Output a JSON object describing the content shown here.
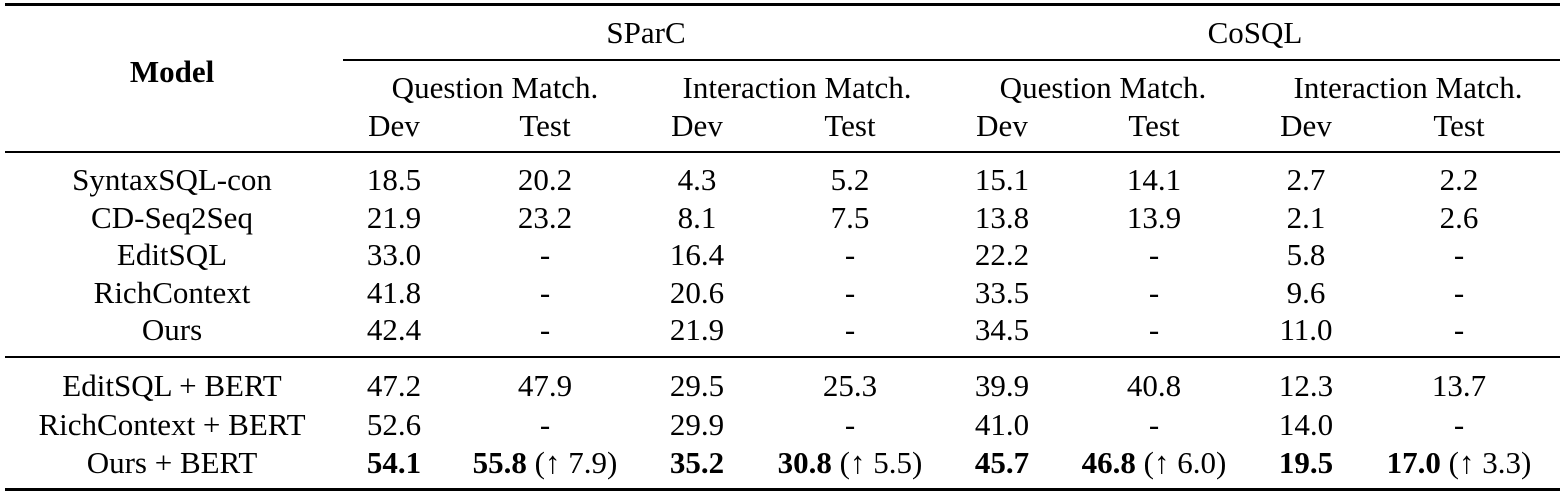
{
  "header": {
    "model_label": "Model",
    "datasets": [
      {
        "name": "SParC"
      },
      {
        "name": "CoSQL"
      }
    ],
    "metrics": [
      "Question Match.",
      "Interaction Match.",
      "Question Match.",
      "Interaction Match."
    ],
    "splits": [
      "Dev",
      "Test",
      "Dev",
      "Test",
      "Dev",
      "Test",
      "Dev",
      "Test"
    ]
  },
  "group1": [
    {
      "model": "SyntaxSQL-con",
      "values": [
        "18.5",
        "20.2",
        "4.3",
        "5.2",
        "15.1",
        "14.1",
        "2.7",
        "2.2"
      ]
    },
    {
      "model": "CD-Seq2Seq",
      "values": [
        "21.9",
        "23.2",
        "8.1",
        "7.5",
        "13.8",
        "13.9",
        "2.1",
        "2.6"
      ]
    },
    {
      "model": "EditSQL",
      "values": [
        "33.0",
        "-",
        "16.4",
        "-",
        "22.2",
        "-",
        "5.8",
        "-"
      ]
    },
    {
      "model": "RichContext",
      "values": [
        "41.8",
        "-",
        "20.6",
        "-",
        "33.5",
        "-",
        "9.6",
        "-"
      ]
    },
    {
      "model": "Ours",
      "values": [
        "42.4",
        "-",
        "21.9",
        "-",
        "34.5",
        "-",
        "11.0",
        "-"
      ]
    }
  ],
  "group2": [
    {
      "model": "EditSQL + BERT",
      "values": [
        "47.2",
        "47.9",
        "29.5",
        "25.3",
        "39.9",
        "40.8",
        "12.3",
        "13.7"
      ]
    },
    {
      "model": "RichContext + BERT",
      "values": [
        "52.6",
        "-",
        "29.9",
        "-",
        "41.0",
        "-",
        "14.0",
        "-"
      ]
    }
  ],
  "ours_bert": {
    "model": "Ours + BERT",
    "sparc_qm_dev": "54.1",
    "sparc_qm_test": "55.8",
    "sparc_qm_test_gain": "(↑ 7.9)",
    "sparc_im_dev": "35.2",
    "sparc_im_test": "30.8",
    "sparc_im_test_gain": "(↑ 5.5)",
    "cosql_qm_dev": "45.7",
    "cosql_qm_test": "46.8",
    "cosql_qm_test_gain": "(↑ 6.0)",
    "cosql_im_dev": "19.5",
    "cosql_im_test": "17.0",
    "cosql_im_test_gain": "(↑ 3.3)"
  }
}
